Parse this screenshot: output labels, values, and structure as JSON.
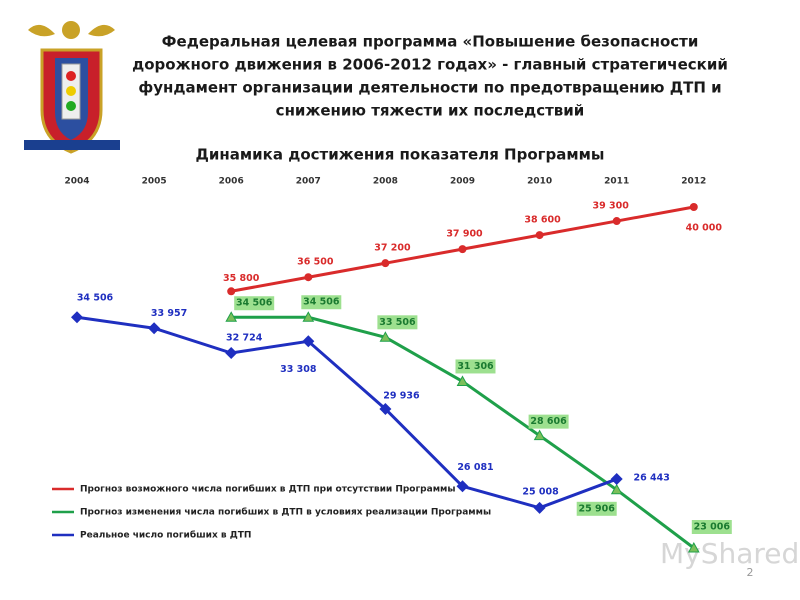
{
  "chart_data": {
    "type": "line",
    "title_lines": [
      "Федеральная целевая программа «Повышение безопасности",
      "дорожного движения в 2006-2012 годах» - главный стратегический",
      "фундамент организации деятельности по предотвращению ДТП  и",
      "снижению тяжести их последствий"
    ],
    "subtitle": "Динамика достижения показателя Программы",
    "categories": [
      "2004",
      "2005",
      "2006",
      "2007",
      "2008",
      "2009",
      "2010",
      "2011",
      "2012"
    ],
    "series": [
      {
        "name": "Прогноз возможного числа погибших в ДТП при отсутствии Программы",
        "color": "#d92b2b",
        "marker": "circle",
        "values": [
          null,
          null,
          35800,
          36500,
          37200,
          37900,
          38600,
          39300,
          40000
        ],
        "value_labels": [
          null,
          null,
          "35 800",
          "36 500",
          "37 200",
          "37 900",
          "38 600",
          "39 300",
          "40 000"
        ]
      },
      {
        "name": "Прогноз изменения числа погибших в ДТП в условиях реализации Программы",
        "color": "#1fa04a",
        "marker": "triangle",
        "values": [
          null,
          null,
          34506,
          34506,
          33506,
          31306,
          28606,
          25906,
          23006
        ],
        "value_labels": [
          null,
          null,
          "34 506",
          "34 506",
          "33 506",
          "31 306",
          "28 606",
          "25 906",
          "23 006"
        ]
      },
      {
        "name": "Реальное число погибших в ДТП",
        "color": "#1f2fc0",
        "marker": "diamond",
        "values": [
          34506,
          33957,
          32724,
          33308,
          29936,
          26081,
          25008,
          26443,
          null
        ],
        "value_labels": [
          "34 506",
          "33 957",
          "32 724",
          "33 308",
          "29 936",
          "26 081",
          "25 008",
          "26 443",
          null
        ]
      }
    ],
    "watermark": "MyShared",
    "page_number": "2"
  }
}
